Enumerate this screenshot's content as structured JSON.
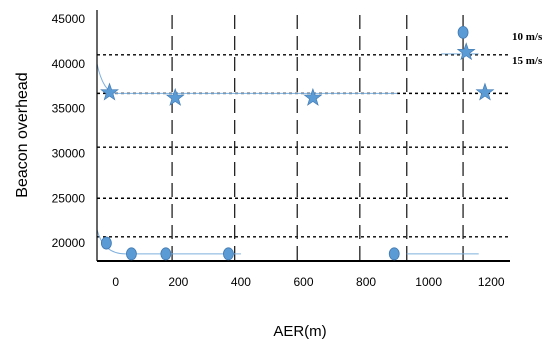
{
  "chart_data": {
    "type": "scatter",
    "title": "",
    "xlabel": "AER(m)",
    "ylabel": "Beacon overhead",
    "xlim": [
      -60,
      1260
    ],
    "ylim": [
      18000,
      46000
    ],
    "x_ticks": [
      0,
      200,
      400,
      600,
      800,
      1000,
      1200
    ],
    "y_ticks": [
      20000,
      25000,
      30000,
      35000,
      40000,
      45000
    ],
    "vertical_grid_x": [
      180,
      380,
      580,
      780,
      930,
      1110
    ],
    "horizontal_grid_y": [
      41000,
      36700,
      30700,
      25000,
      20700
    ],
    "grid": true,
    "legend": "right",
    "series": [
      {
        "name": "10 m/s",
        "marker": "circle",
        "color": "#5b9bd5",
        "x": [
          -30,
          50,
          160,
          360,
          890,
          1110
        ],
        "y": [
          20000,
          18800,
          18800,
          18800,
          18800,
          43500
        ]
      },
      {
        "name": "15 m/s",
        "marker": "star",
        "color": "#5b9bd5",
        "x": [
          -20,
          190,
          630,
          1120,
          1180
        ],
        "y": [
          36800,
          36200,
          36200,
          41300,
          36800
        ]
      }
    ]
  }
}
